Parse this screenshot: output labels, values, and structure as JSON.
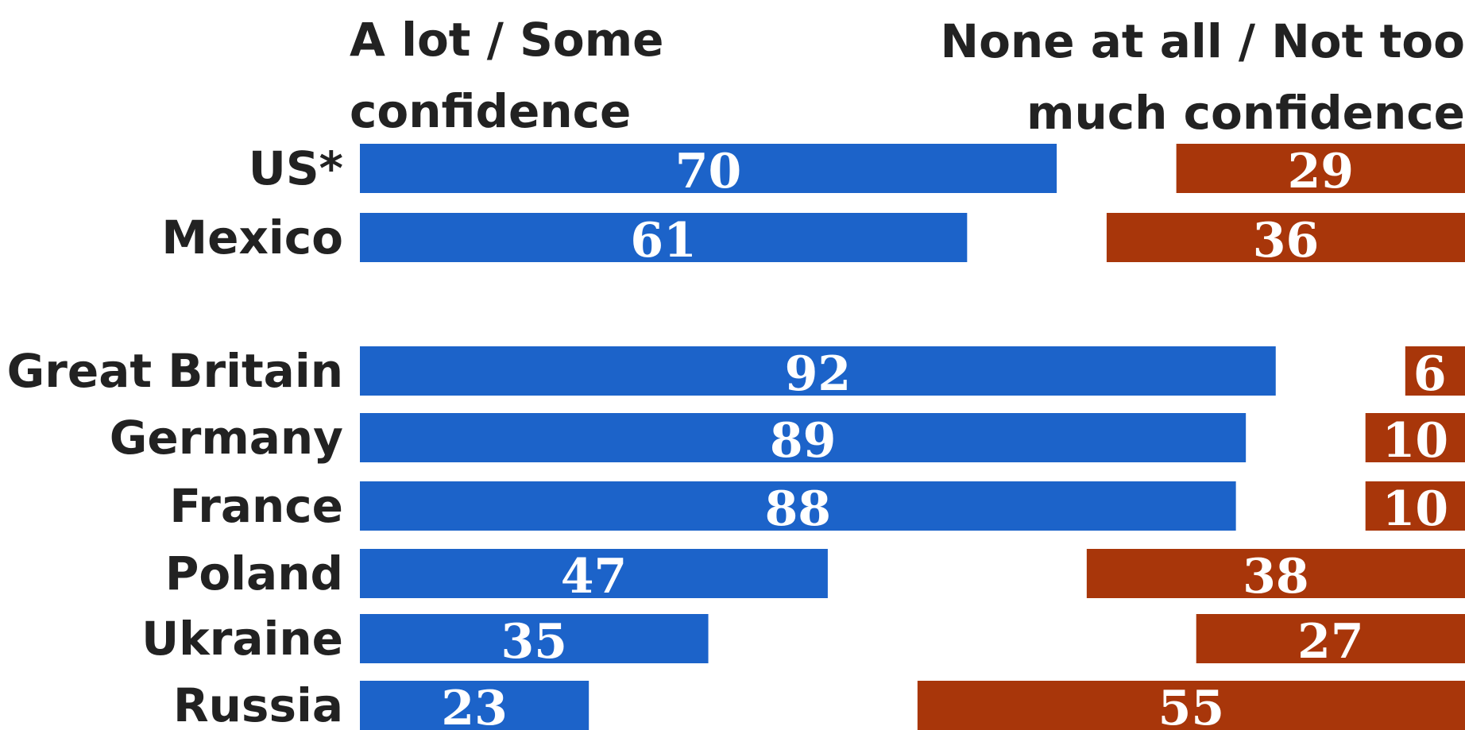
{
  "chart_data": {
    "type": "bar",
    "subtype": "diverging-horizontal",
    "headers": {
      "left_line1": "A lot / Some",
      "left_line2": "confidence",
      "right_line1": "None at all / Not too",
      "right_line2": "much confidence"
    },
    "colors": {
      "positive": "#1C63C9",
      "negative": "#A8360A",
      "value_text": "#ffffff",
      "label_text": "#222222"
    },
    "series": [
      {
        "name": "A lot / Some confidence",
        "values": [
          70,
          61,
          92,
          89,
          88,
          47,
          35,
          23
        ]
      },
      {
        "name": "None at all / Not too much confidence",
        "values": [
          29,
          36,
          6,
          10,
          10,
          38,
          27,
          55
        ]
      }
    ],
    "categories": [
      "US*",
      "Mexico",
      "Great Britain",
      "Germany",
      "France",
      "Poland",
      "Ukraine",
      "Russia"
    ],
    "groups": [
      [
        "US*",
        "Mexico"
      ],
      [
        "Great Britain",
        "Germany",
        "France",
        "Poland",
        "Ukraine",
        "Russia"
      ]
    ]
  }
}
